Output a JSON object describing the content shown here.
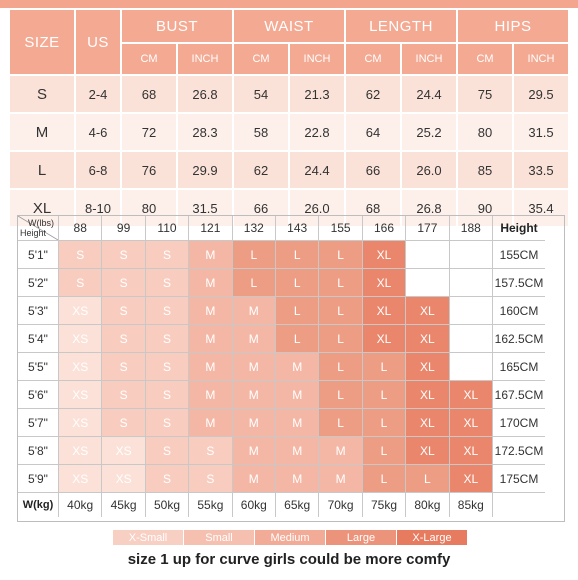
{
  "size_table": {
    "headers": {
      "size": "SIZE",
      "us": "US",
      "groups": [
        "BUST",
        "WAIST",
        "LENGTH",
        "HIPS"
      ],
      "units": [
        "CM",
        "INCH",
        "CM",
        "INCH",
        "CM",
        "INCH",
        "CM",
        "INCH"
      ]
    },
    "rows": [
      [
        "S",
        "2-4",
        "68",
        "26.8",
        "54",
        "21.3",
        "62",
        "24.4",
        "75",
        "29.5"
      ],
      [
        "M",
        "4-6",
        "72",
        "28.3",
        "58",
        "22.8",
        "64",
        "25.2",
        "80",
        "31.5"
      ],
      [
        "L",
        "6-8",
        "76",
        "29.9",
        "62",
        "24.4",
        "66",
        "26.0",
        "85",
        "33.5"
      ],
      [
        "XL",
        "8-10",
        "80",
        "31.5",
        "66",
        "26.0",
        "68",
        "26.8",
        "90",
        "35.4"
      ]
    ]
  },
  "hw_grid": {
    "corner_weight": "W(lbs)",
    "corner_height": "Height",
    "height_header": "Height",
    "weights_lbs": [
      "88",
      "99",
      "110",
      "121",
      "132",
      "143",
      "155",
      "166",
      "177",
      "188"
    ],
    "rows": [
      {
        "ft": "5'1\"",
        "cm": "155CM",
        "sizes": [
          "S",
          "S",
          "S",
          "M",
          "L",
          "L",
          "L",
          "XL",
          "",
          ""
        ]
      },
      {
        "ft": "5'2\"",
        "cm": "157.5CM",
        "sizes": [
          "S",
          "S",
          "S",
          "M",
          "L",
          "L",
          "L",
          "XL",
          "",
          ""
        ]
      },
      {
        "ft": "5'3\"",
        "cm": "160CM",
        "sizes": [
          "XS",
          "S",
          "S",
          "M",
          "M",
          "L",
          "L",
          "XL",
          "XL",
          ""
        ]
      },
      {
        "ft": "5'4\"",
        "cm": "162.5CM",
        "sizes": [
          "XS",
          "S",
          "S",
          "M",
          "M",
          "L",
          "L",
          "XL",
          "XL",
          ""
        ]
      },
      {
        "ft": "5'5\"",
        "cm": "165CM",
        "sizes": [
          "XS",
          "S",
          "S",
          "M",
          "M",
          "M",
          "L",
          "L",
          "XL",
          ""
        ]
      },
      {
        "ft": "5'6\"",
        "cm": "167.5CM",
        "sizes": [
          "XS",
          "S",
          "S",
          "M",
          "M",
          "M",
          "L",
          "L",
          "XL",
          "XL"
        ]
      },
      {
        "ft": "5'7\"",
        "cm": "170CM",
        "sizes": [
          "XS",
          "S",
          "S",
          "M",
          "M",
          "M",
          "L",
          "L",
          "XL",
          "XL"
        ]
      },
      {
        "ft": "5'8\"",
        "cm": "172.5CM",
        "sizes": [
          "XS",
          "XS",
          "S",
          "S",
          "M",
          "M",
          "M",
          "L",
          "XL",
          "XL"
        ]
      },
      {
        "ft": "5'9\"",
        "cm": "175CM",
        "sizes": [
          "XS",
          "XS",
          "S",
          "S",
          "M",
          "M",
          "M",
          "L",
          "L",
          "XL"
        ]
      }
    ],
    "kg_label": "W(kg)",
    "weights_kg": [
      "40kg",
      "45kg",
      "50kg",
      "55kg",
      "60kg",
      "65kg",
      "70kg",
      "75kg",
      "80kg",
      "85kg"
    ]
  },
  "legend": [
    {
      "label": "X-Small",
      "color": "#f8cfc3"
    },
    {
      "label": "Small",
      "color": "#f6c0b0"
    },
    {
      "label": "Medium",
      "color": "#f2ab97"
    },
    {
      "label": "Large",
      "color": "#ec947b"
    },
    {
      "label": "X-Large",
      "color": "#e67b60"
    }
  ],
  "size_colors": {
    "XS": "#fbe1d8",
    "S": "#f8cdbf",
    "M": "#f4b7a5",
    "L": "#ee9d85",
    "XL": "#e9866c"
  },
  "note": "size 1 up for curve girls could be more comfy"
}
